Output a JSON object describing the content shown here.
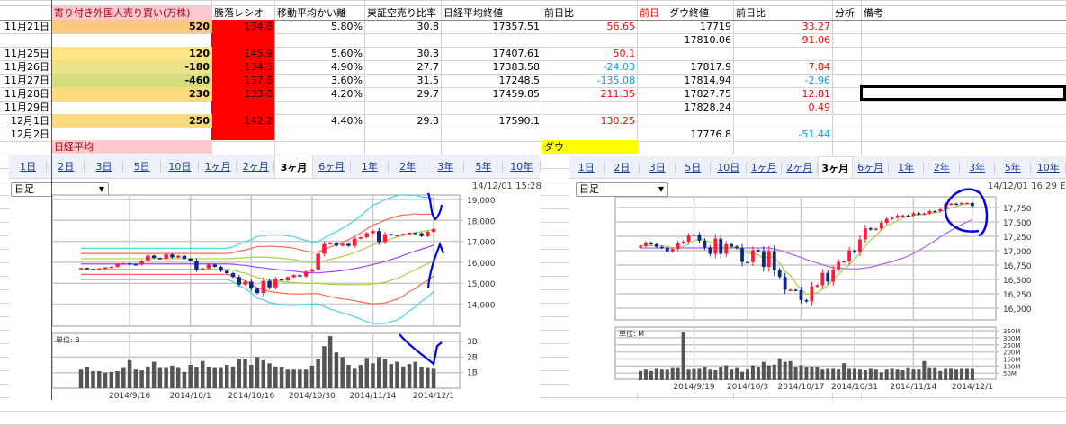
{
  "sheet": {
    "headers": [
      "",
      "寄り付き外国人売り買い(万株)",
      "騰落レシオ",
      "移動平均かい離",
      "東証空売り比率",
      "日経平均終値",
      "前日比",
      "ダウ終値",
      "前日比",
      "分析",
      "備考"
    ],
    "dow_header_prefix": "前日",
    "rows": [
      {
        "date": "11月21日",
        "foreign": "520",
        "ratio": "134.8",
        "ma_dev": "5.80%",
        "short": "30.8",
        "nikkei": "17357.51",
        "nikkei_chg": "56.65",
        "dow": "17719",
        "dow_chg": "33.27",
        "fill": "#fcc87f"
      },
      {
        "date": "",
        "foreign": "",
        "ratio": "",
        "ma_dev": "",
        "short": "",
        "nikkei": "",
        "nikkei_chg": "",
        "dow": "17810.06",
        "dow_chg": "91.06",
        "fill": ""
      },
      {
        "date": "11月25日",
        "foreign": "120",
        "ratio": "145.9",
        "ma_dev": "5.60%",
        "short": "30.3",
        "nikkei": "17407.61",
        "nikkei_chg": "50.1",
        "dow": "",
        "dow_chg": "",
        "fill": "#fde486"
      },
      {
        "date": "11月26日",
        "foreign": "-180",
        "ratio": "134.5",
        "ma_dev": "4.90%",
        "short": "27.7",
        "nikkei": "17383.58",
        "nikkei_chg": "-24.03",
        "dow": "17817.9",
        "dow_chg": "7.84",
        "fill": "#ebe385"
      },
      {
        "date": "11月27日",
        "foreign": "-460",
        "ratio": "137.6",
        "ma_dev": "3.60%",
        "short": "31.5",
        "nikkei": "17248.5",
        "nikkei_chg": "-135.08",
        "dow": "17814.94",
        "dow_chg": "-2.96",
        "fill": "#d4de80"
      },
      {
        "date": "11月28日",
        "foreign": "230",
        "ratio": "133.6",
        "ma_dev": "4.20%",
        "short": "29.7",
        "nikkei": "17459.85",
        "nikkei_chg": "211.35",
        "dow": "17827.75",
        "dow_chg": "12.81",
        "fill": "#fddc80"
      },
      {
        "date": "11月29日",
        "foreign": "",
        "ratio": "",
        "ma_dev": "",
        "short": "",
        "nikkei": "",
        "nikkei_chg": "",
        "dow": "17828.24",
        "dow_chg": "0.49",
        "fill": ""
      },
      {
        "date": "12月1日",
        "foreign": "250",
        "ratio": "142.2",
        "ma_dev": "4.40%",
        "short": "29.3",
        "nikkei": "17590.1",
        "nikkei_chg": "130.25",
        "dow": "",
        "dow_chg": "",
        "fill": "#fdd980"
      },
      {
        "date": "12月2日",
        "foreign": "",
        "ratio": "",
        "ma_dev": "",
        "short": "",
        "nikkei": "",
        "nikkei_chg": "",
        "dow": "17776.8",
        "dow_chg": "-51.44",
        "fill": ""
      }
    ],
    "nikkei_label": "日経平均",
    "dow_label": "ダウ",
    "colors": {
      "positive": "#ff0000",
      "negative": "#00a0e9",
      "header_fill": "#ffc7ce",
      "header_text": "#9c0006",
      "ratio_fill": "#ff0000",
      "dow_label_fill": "#ffff00"
    }
  },
  "tabs": [
    "1日",
    "2日",
    "3日",
    "5日",
    "10日",
    "1ヶ月",
    "2ヶ月",
    "3ヶ月",
    "6ヶ月",
    "1年",
    "2年",
    "3年",
    "5年",
    "10年"
  ],
  "selected_tab": "3ヶ月",
  "chart_data": [
    {
      "type": "candlestick",
      "interval_select": "日足",
      "timestamp": "14/12/01 15:28",
      "volume_unit": "単位: B",
      "y_ticks": [
        "19,000",
        "18,000",
        "17,000",
        "16,000",
        "15,000",
        "14,000"
      ],
      "y_tick_values": [
        19000,
        18000,
        17000,
        16000,
        15000,
        14000
      ],
      "volume_ticks": [
        "3B",
        "2B",
        "1B"
      ],
      "volume_tick_values": [
        3,
        2,
        1
      ],
      "x_labels": [
        "2014/9/16",
        "2014/10/1",
        "2014/10/16",
        "2014/10/30",
        "2014/11/14",
        "2014/12/1"
      ],
      "x_label_index": [
        8,
        18,
        28,
        38,
        48,
        58
      ],
      "overlays": [
        "25-day moving average",
        "Bollinger ±1σ/±2σ/±3σ"
      ],
      "close": [
        15728,
        15676,
        15668,
        15705,
        15750,
        15788,
        15909,
        15948,
        15911,
        15888,
        16067,
        16321,
        16205,
        16167,
        16374,
        16229,
        16310,
        16173,
        16082,
        15661,
        15708,
        15890,
        15783,
        15595,
        15478,
        15300,
        14936,
        15073,
        14738,
        14532,
        15111,
        14804,
        15195,
        15138,
        15291,
        15388,
        15329,
        15553,
        15658,
        16413,
        16862,
        16937,
        16792,
        16880,
        16780,
        17124,
        17197,
        17392,
        17490,
        16973,
        17344,
        17288,
        17300,
        17357,
        17407,
        17383,
        17248,
        17459,
        17590
      ],
      "volume": [
        1.2,
        1.35,
        1.1,
        1.1,
        1.0,
        1.05,
        1.1,
        1.3,
        1.8,
        1.2,
        1.15,
        1.4,
        1.7,
        1.3,
        1.3,
        1.45,
        1.3,
        1.05,
        1.5,
        1.35,
        1.75,
        1.35,
        1.3,
        1.3,
        1.5,
        1.4,
        1.9,
        1.9,
        1.5,
        2.0,
        1.8,
        1.6,
        1.4,
        1.35,
        1.2,
        1.2,
        1.2,
        1.2,
        1.45,
        1.85,
        2.7,
        3.35,
        2.3,
        2.0,
        1.5,
        1.25,
        1.5,
        1.95,
        1.6,
        2.0,
        1.9,
        1.55,
        1.7,
        1.4,
        1.55,
        1.7,
        1.35,
        1.3,
        1.25
      ]
    },
    {
      "type": "candlestick",
      "interval_select": "日足",
      "timestamp": "14/12/01 16:29 EST",
      "volume_unit": "単位: M",
      "y_ticks": [
        "17,750",
        "17,500",
        "17,250",
        "17,000",
        "16,750",
        "16,500",
        "16,250",
        "16,000"
      ],
      "y_tick_values": [
        17750,
        17500,
        17250,
        17000,
        16750,
        16500,
        16250,
        16000
      ],
      "volume_ticks": [
        "350M",
        "300M",
        "250M",
        "200M",
        "150M",
        "100M",
        "50M"
      ],
      "volume_tick_values": [
        350,
        300,
        250,
        200,
        150,
        100,
        50
      ],
      "x_labels": [
        "2014/9/19",
        "2014/10/3",
        "2014/10/17",
        "2014/10/31",
        "2014/11/14",
        "2014/12/1"
      ],
      "x_label_index": [
        10,
        20,
        30,
        40,
        51,
        62
      ],
      "overlays": [
        "short moving average",
        "25-day moving average"
      ],
      "close": [
        17080,
        17138,
        17111,
        17068,
        17049,
        16988,
        17031,
        17131,
        17156,
        17266,
        17280,
        17172,
        17055,
        16945,
        17210,
        16945,
        17113,
        17071,
        17043,
        16804,
        16801,
        17009,
        16991,
        16719,
        16994,
        16659,
        16544,
        16321,
        16321,
        16315,
        16141,
        16117,
        16380,
        16399,
        16614,
        16462,
        16677,
        16805,
        16817,
        17005,
        16974,
        17195,
        17390,
        17366,
        17383,
        17484,
        17554,
        17573,
        17613,
        17614,
        17612,
        17652,
        17634,
        17647,
        17687,
        17685,
        17719,
        17810,
        17817,
        17815,
        17827,
        17828,
        17776
      ],
      "volume": [
        65,
        75,
        65,
        80,
        75,
        75,
        85,
        85,
        340,
        75,
        78,
        80,
        90,
        75,
        70,
        95,
        105,
        75,
        85,
        60,
        75,
        105,
        95,
        130,
        105,
        110,
        155,
        130,
        135,
        90,
        105,
        90,
        95,
        90,
        75,
        80,
        80,
        75,
        120,
        80,
        80,
        75,
        70,
        80,
        75,
        55,
        75,
        80,
        75,
        70,
        85,
        75,
        75,
        135,
        85,
        85,
        65,
        80,
        80,
        75,
        80,
        80,
        80
      ]
    }
  ]
}
